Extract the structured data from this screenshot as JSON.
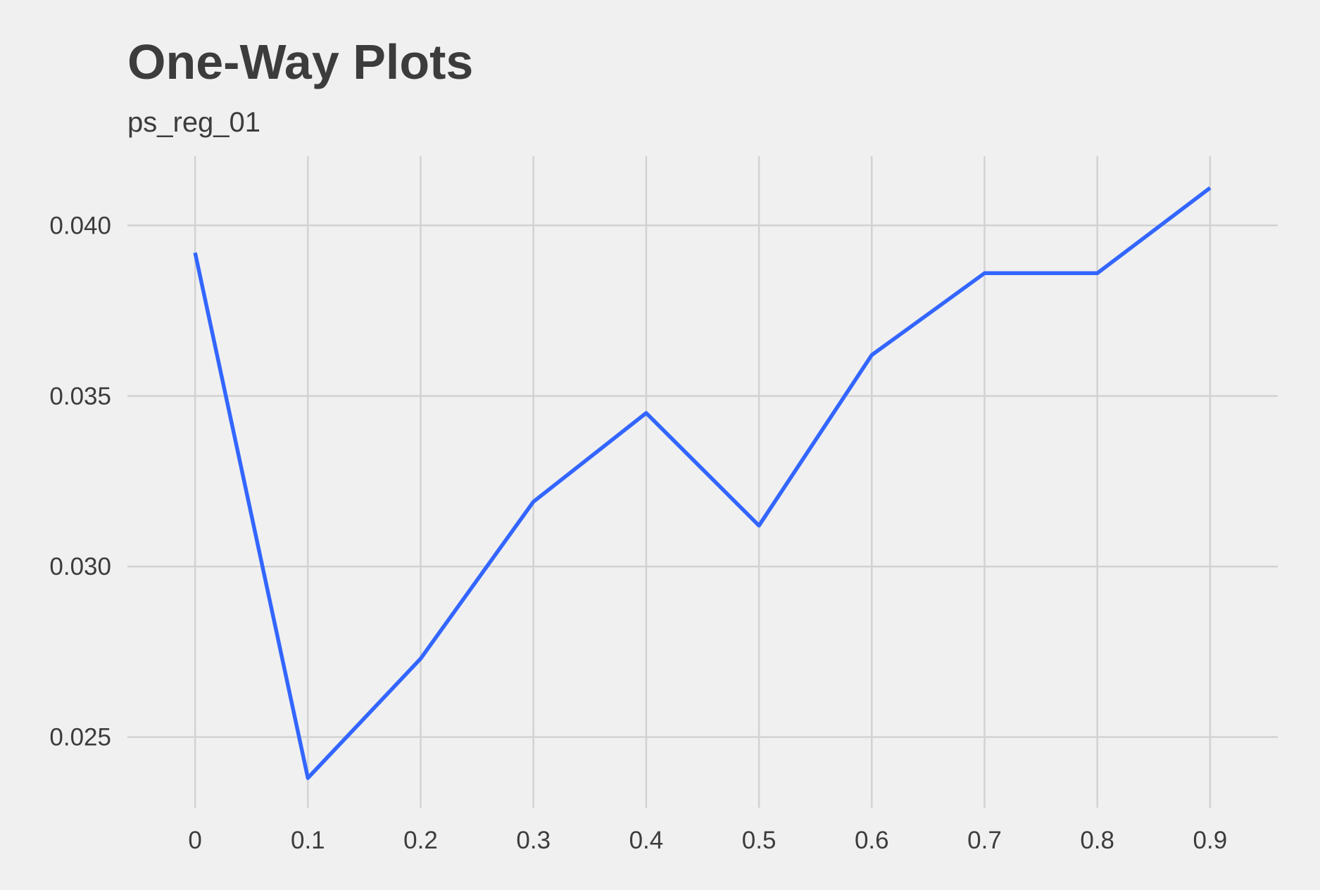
{
  "chart_data": {
    "type": "line",
    "title": "One-Way Plots",
    "subtitle": "ps_reg_01",
    "xlabel": "",
    "ylabel": "",
    "x": [
      0,
      0.1,
      0.2,
      0.3,
      0.4,
      0.5,
      0.6,
      0.7,
      0.8,
      0.9
    ],
    "x_tick_labels": [
      "0",
      "0.1",
      "0.2",
      "0.3",
      "0.4",
      "0.5",
      "0.6",
      "0.7",
      "0.8",
      "0.9"
    ],
    "y_ticks": [
      0.025,
      0.03,
      0.035,
      0.04
    ],
    "y_tick_labels": [
      "0.025",
      "0.030",
      "0.035",
      "0.040"
    ],
    "series": [
      {
        "values": [
          0.0392,
          0.0238,
          0.0273,
          0.0319,
          0.0345,
          0.0312,
          0.0362,
          0.0386,
          0.0386,
          0.0411
        ],
        "color": "#3366ff"
      }
    ],
    "xlim": [
      -0.06,
      0.96
    ],
    "ylim": [
      0.02293,
      0.04203
    ],
    "grid": true,
    "legend": "none",
    "background": "#f0f0f0",
    "grid_color": "#d2d2d2"
  }
}
